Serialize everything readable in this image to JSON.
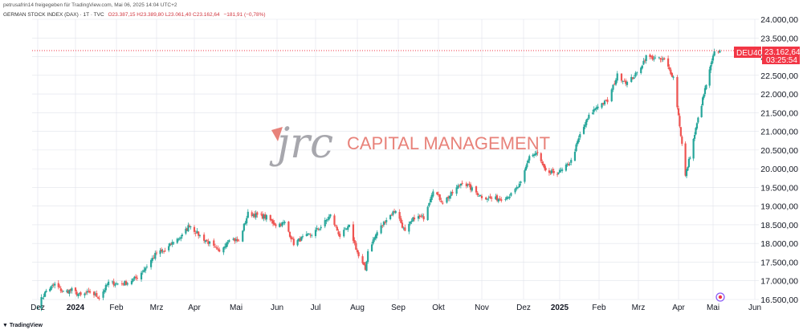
{
  "header": {
    "publisher_line": "petrusafrin14 freigegeben für TradingView.com, Mai 06, 2025 14:04 UTC+2",
    "symbol": "GERMAN STOCK INDEX (DAX) · 1T · TVC",
    "ohlc": "O23.387,15 H23.389,80 L23.061,40 C23.162,64",
    "change": "−181,91 (−0,78%)"
  },
  "watermark": {
    "logo_text": "jrc",
    "company": "CAPITAL MANAGEMENT"
  },
  "price_label": {
    "ticker": "DEU40",
    "price": "23.162,64",
    "countdown": "03:25:54"
  },
  "footer": {
    "brand": "TradingView"
  },
  "colors": {
    "up": "#26a69a",
    "down": "#ef5350",
    "badge": "#f23645",
    "grid": "#e0e3eb"
  },
  "chart_data": {
    "type": "candlestick",
    "title": "GERMAN STOCK INDEX (DAX)",
    "ylim": [
      16500,
      24000
    ],
    "y_ticks": [
      16500,
      17000,
      17500,
      18000,
      18500,
      19000,
      19500,
      20000,
      20500,
      21000,
      21500,
      22000,
      22500,
      23000,
      23500,
      24000
    ],
    "y_tick_labels": [
      "16.500,00",
      "17.000,00",
      "17.500,00",
      "18.000,00",
      "18.500,00",
      "19.000,00",
      "19.500,00",
      "20.000,00",
      "20.500,00",
      "21.000,00",
      "21.500,00",
      "22.000,00",
      "22.500,00",
      "23.000,00",
      "23.500,00",
      "24.000,00"
    ],
    "x_tick_labels": [
      "Dez",
      "2024",
      "Feb",
      "Mrz",
      "Apr",
      "Mai",
      "Jun",
      "Jul",
      "Aug",
      "Sep",
      "Okt",
      "Nov",
      "Dez",
      "2025",
      "Feb",
      "Mrz",
      "Apr",
      "Mai",
      "Jun"
    ],
    "x_tick_dates": [
      "2023-12-01",
      "2024-01-01",
      "2024-02-01",
      "2024-03-01",
      "2024-04-01",
      "2024-05-01",
      "2024-06-01",
      "2024-07-01",
      "2024-08-01",
      "2024-09-01",
      "2024-10-01",
      "2024-11-01",
      "2024-12-01",
      "2025-01-01",
      "2025-02-01",
      "2025-03-01",
      "2025-04-01",
      "2025-05-01",
      "2025-06-01"
    ],
    "bold_x_ticks": [
      "2024",
      "2025"
    ],
    "last_price": 23162.64,
    "closes": [
      [
        "2023-12-01",
        16350
      ],
      [
        "2023-12-08",
        16730
      ],
      [
        "2023-12-15",
        16900
      ],
      [
        "2023-12-22",
        16700
      ],
      [
        "2023-12-29",
        16751
      ],
      [
        "2024-01-05",
        16600
      ],
      [
        "2024-01-12",
        16700
      ],
      [
        "2024-01-19",
        16550
      ],
      [
        "2024-01-26",
        16950
      ],
      [
        "2024-02-02",
        16920
      ],
      [
        "2024-02-09",
        16950
      ],
      [
        "2024-02-16",
        17100
      ],
      [
        "2024-02-23",
        17400
      ],
      [
        "2024-03-01",
        17750
      ],
      [
        "2024-03-08",
        17800
      ],
      [
        "2024-03-15",
        18050
      ],
      [
        "2024-03-22",
        18200
      ],
      [
        "2024-03-28",
        18500
      ],
      [
        "2024-04-05",
        18200
      ],
      [
        "2024-04-12",
        18000
      ],
      [
        "2024-04-19",
        17750
      ],
      [
        "2024-04-26",
        18150
      ],
      [
        "2024-05-03",
        18050
      ],
      [
        "2024-05-10",
        18800
      ],
      [
        "2024-05-17",
        18750
      ],
      [
        "2024-05-24",
        18700
      ],
      [
        "2024-05-31",
        18500
      ],
      [
        "2024-06-07",
        18550
      ],
      [
        "2024-06-14",
        18000
      ],
      [
        "2024-06-21",
        18150
      ],
      [
        "2024-06-28",
        18250
      ],
      [
        "2024-07-05",
        18450
      ],
      [
        "2024-07-12",
        18750
      ],
      [
        "2024-07-19",
        18200
      ],
      [
        "2024-07-26",
        18450
      ],
      [
        "2024-08-02",
        17650
      ],
      [
        "2024-08-07",
        17300
      ],
      [
        "2024-08-09",
        17800
      ],
      [
        "2024-08-16",
        18300
      ],
      [
        "2024-08-23",
        18650
      ],
      [
        "2024-08-30",
        18900
      ],
      [
        "2024-09-06",
        18300
      ],
      [
        "2024-09-13",
        18700
      ],
      [
        "2024-09-20",
        18700
      ],
      [
        "2024-09-27",
        19450
      ],
      [
        "2024-10-04",
        19100
      ],
      [
        "2024-10-11",
        19350
      ],
      [
        "2024-10-18",
        19650
      ],
      [
        "2024-10-25",
        19450
      ],
      [
        "2024-11-01",
        19250
      ],
      [
        "2024-11-08",
        19200
      ],
      [
        "2024-11-15",
        19200
      ],
      [
        "2024-11-22",
        19300
      ],
      [
        "2024-11-29",
        19600
      ],
      [
        "2024-12-06",
        20350
      ],
      [
        "2024-12-13",
        20400
      ],
      [
        "2024-12-20",
        19900
      ],
      [
        "2024-12-30",
        19900
      ],
      [
        "2025-01-03",
        19950
      ],
      [
        "2025-01-10",
        20200
      ],
      [
        "2025-01-17",
        20900
      ],
      [
        "2025-01-24",
        21400
      ],
      [
        "2025-01-31",
        21700
      ],
      [
        "2025-02-07",
        21800
      ],
      [
        "2025-02-14",
        22500
      ],
      [
        "2025-02-21",
        22300
      ],
      [
        "2025-02-28",
        22550
      ],
      [
        "2025-03-07",
        23000
      ],
      [
        "2025-03-14",
        22950
      ],
      [
        "2025-03-21",
        22900
      ],
      [
        "2025-03-28",
        22450
      ],
      [
        "2025-04-04",
        20650
      ],
      [
        "2025-04-07",
        19800
      ],
      [
        "2025-04-11",
        20350
      ],
      [
        "2025-04-17",
        21200
      ],
      [
        "2025-04-25",
        22250
      ],
      [
        "2025-05-02",
        23100
      ],
      [
        "2025-05-06",
        23162.64
      ]
    ]
  }
}
